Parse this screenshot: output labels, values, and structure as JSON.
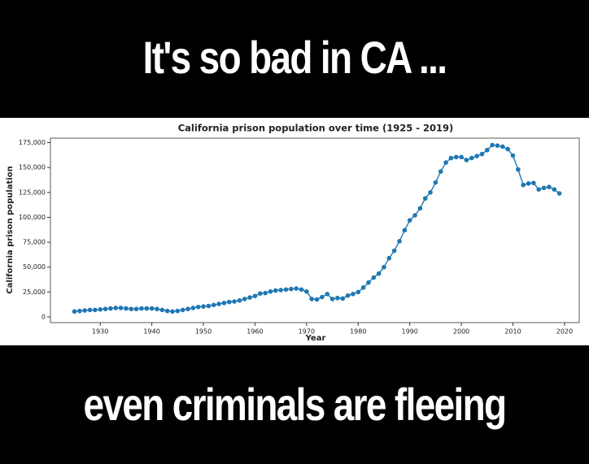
{
  "caption_top": "It's so bad in CA ...",
  "caption_bottom": "even criminals are fleeing",
  "chart_data": {
    "type": "line",
    "title": "California prison population over time (1925 - 2019)",
    "x_label": "Year",
    "y_label": "California prison population",
    "x": [
      1925,
      1926,
      1927,
      1928,
      1929,
      1930,
      1931,
      1932,
      1933,
      1934,
      1935,
      1936,
      1937,
      1938,
      1939,
      1940,
      1941,
      1942,
      1943,
      1944,
      1945,
      1946,
      1947,
      1948,
      1949,
      1950,
      1951,
      1952,
      1953,
      1954,
      1955,
      1956,
      1957,
      1958,
      1959,
      1960,
      1961,
      1962,
      1963,
      1964,
      1965,
      1966,
      1967,
      1968,
      1969,
      1970,
      1971,
      1972,
      1973,
      1974,
      1975,
      1976,
      1977,
      1978,
      1979,
      1980,
      1981,
      1982,
      1983,
      1984,
      1985,
      1986,
      1987,
      1988,
      1989,
      1990,
      1991,
      1992,
      1993,
      1994,
      1995,
      1996,
      1997,
      1998,
      1999,
      2000,
      2001,
      2002,
      2003,
      2004,
      2005,
      2006,
      2007,
      2008,
      2009,
      2010,
      2011,
      2012,
      2013,
      2014,
      2015,
      2016,
      2017,
      2018,
      2019
    ],
    "values": [
      5500,
      6000,
      6500,
      7000,
      7000,
      7500,
      8000,
      8500,
      9000,
      9000,
      8500,
      8000,
      8000,
      8500,
      8500,
      8500,
      8000,
      7000,
      6000,
      5500,
      6000,
      7000,
      8000,
      9000,
      10000,
      10500,
      11000,
      12000,
      13000,
      14000,
      15000,
      15500,
      16500,
      18000,
      19500,
      21000,
      23500,
      24000,
      25500,
      26500,
      27000,
      27500,
      28000,
      28500,
      27500,
      25500,
      18000,
      17500,
      20000,
      23000,
      18000,
      19000,
      18500,
      21500,
      23000,
      25000,
      29500,
      34500,
      39500,
      43500,
      50000,
      59000,
      66500,
      76000,
      87000,
      97000,
      102000,
      109000,
      119000,
      125000,
      135000,
      146000,
      155000,
      159500,
      160500,
      160500,
      157500,
      159500,
      161500,
      163500,
      167500,
      172500,
      172000,
      171000,
      168500,
      162000,
      148000,
      132500,
      134000,
      134500,
      128000,
      129500,
      130500,
      128000,
      124000
    ],
    "color": "#1f77b4",
    "xlim": [
      1920.35,
      2022.85
    ],
    "ylim": [
      -5700,
      179500
    ],
    "xticks": [
      1930,
      1940,
      1950,
      1960,
      1970,
      1980,
      1990,
      2000,
      2010,
      2020
    ],
    "yticks": [
      0,
      {
        "value": 25000,
        "label": "25,000"
      },
      {
        "value": 50000,
        "label": "50,000"
      },
      {
        "value": 75000,
        "label": "75,000"
      },
      {
        "value": 100000,
        "label": "100,000"
      },
      {
        "value": 125000,
        "label": "125,000"
      },
      {
        "value": 150000,
        "label": "150,000"
      },
      {
        "value": 175000,
        "label": "175,000"
      }
    ]
  }
}
